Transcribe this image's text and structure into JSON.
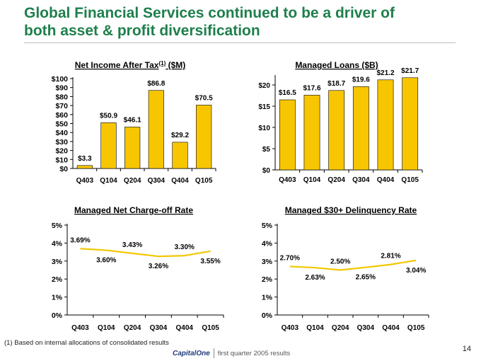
{
  "slide": {
    "title_line1": "Global Financial Services continued to be a driver of",
    "title_line2": "both asset & profit diversification",
    "footnote": "(1) Based on internal allocations of consolidated results",
    "page_number": "14",
    "brand_logo": "CapitalOne",
    "brand_tagline": "first quarter 2005 results"
  },
  "colors": {
    "title": "#1e7f4d",
    "bar_fill": "#f7c600",
    "bar_stroke": "#000000",
    "line": "#f2c800",
    "axis": "#000000"
  },
  "chart_data": [
    {
      "id": "net-income",
      "type": "bar",
      "title": "Net Income After Tax(1) ($M)",
      "title_parts": [
        "Net Income After Tax",
        "(1)",
        " ($M)"
      ],
      "categories": [
        "Q403",
        "Q104",
        "Q204",
        "Q304",
        "Q404",
        "Q105"
      ],
      "values": [
        3.3,
        50.9,
        46.1,
        86.8,
        29.2,
        70.5
      ],
      "data_labels": [
        "$3.3",
        "$50.9",
        "$46.1",
        "$86.8",
        "$29.2",
        "$70.5"
      ],
      "ylim": [
        0,
        100
      ],
      "yticks": [
        0,
        10,
        20,
        30,
        40,
        50,
        60,
        70,
        80,
        90,
        100
      ],
      "ytick_labels": [
        "$0",
        "$10",
        "$20",
        "$30",
        "$40",
        "$50",
        "$60",
        "$70",
        "$80",
        "$90",
        "$100"
      ],
      "xlabel": "",
      "ylabel": "",
      "grid": false
    },
    {
      "id": "managed-loans",
      "type": "bar",
      "title": "Managed Loans ($B)",
      "categories": [
        "Q403",
        "Q104",
        "Q204",
        "Q304",
        "Q404",
        "Q105"
      ],
      "values": [
        16.5,
        17.6,
        18.7,
        19.6,
        21.2,
        21.7
      ],
      "data_labels": [
        "$16.5",
        "$17.6",
        "$18.7",
        "$19.6",
        "$21.2",
        "$21.7"
      ],
      "ylim": [
        0,
        22
      ],
      "yticks": [
        0,
        5,
        10,
        15,
        20
      ],
      "ytick_labels": [
        "$0",
        "$5",
        "$10",
        "$15",
        "$20"
      ],
      "xlabel": "",
      "ylabel": "",
      "grid": false
    },
    {
      "id": "charge-off",
      "type": "line",
      "title": "Managed Net Charge-off Rate",
      "categories": [
        "Q403",
        "Q104",
        "Q204",
        "Q304",
        "Q404",
        "Q105"
      ],
      "values": [
        3.69,
        3.6,
        3.43,
        3.26,
        3.3,
        3.55
      ],
      "data_labels": [
        "3.69%",
        "3.60%",
        "3.43%",
        "3.26%",
        "3.30%",
        "3.55%"
      ],
      "label_positions": [
        "above",
        "below",
        "above",
        "below",
        "above",
        "below"
      ],
      "ylim": [
        0,
        5
      ],
      "yticks": [
        0,
        1,
        2,
        3,
        4,
        5
      ],
      "ytick_labels": [
        "0%",
        "1%",
        "2%",
        "3%",
        "4%",
        "5%"
      ],
      "xlabel": "",
      "ylabel": "",
      "grid": false
    },
    {
      "id": "delinquency",
      "type": "line",
      "title": "Managed $30+ Delinquency Rate",
      "categories": [
        "Q403",
        "Q104",
        "Q204",
        "Q304",
        "Q404",
        "Q105"
      ],
      "values": [
        2.7,
        2.63,
        2.5,
        2.65,
        2.81,
        3.04
      ],
      "data_labels": [
        "2.70%",
        "2.63%",
        "2.50%",
        "2.65%",
        "2.81%",
        "3.04%"
      ],
      "label_positions": [
        "above",
        "below",
        "above",
        "below",
        "above",
        "below"
      ],
      "ylim": [
        0,
        5
      ],
      "yticks": [
        0,
        1,
        2,
        3,
        4,
        5
      ],
      "ytick_labels": [
        "0%",
        "1%",
        "2%",
        "3%",
        "4%",
        "5%"
      ],
      "xlabel": "",
      "ylabel": "",
      "grid": false
    }
  ]
}
